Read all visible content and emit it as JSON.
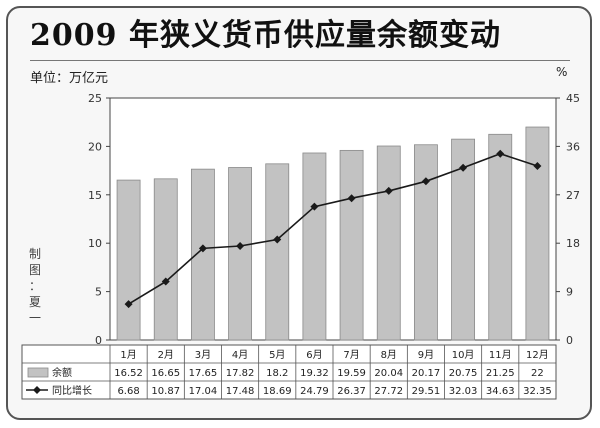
{
  "title": "2009 年狭义货币供应量余额变动",
  "unit_label": "单位：万亿元",
  "right_unit": "%",
  "credit": "制\n图\n：\n夏\n一",
  "chart_data": {
    "type": "bar",
    "title": "2009 年狭义货币供应量余额变动",
    "categories": [
      "1月",
      "2月",
      "3月",
      "4月",
      "5月",
      "6月",
      "7月",
      "8月",
      "9月",
      "10月",
      "11月",
      "12月"
    ],
    "y_left": {
      "range": [
        0,
        25
      ],
      "ticks": [
        "0",
        "5",
        "10",
        "15",
        "20",
        "25"
      ]
    },
    "y_right": {
      "range": [
        0,
        45
      ],
      "ticks": [
        "0",
        "9",
        "18",
        "27",
        "36",
        "45"
      ],
      "unit": "%"
    },
    "grid": false,
    "legend": "table-below",
    "series": [
      {
        "name": "余额",
        "type": "bar",
        "axis": "left",
        "color": "#c2c2c2",
        "values": [
          16.52,
          16.65,
          17.65,
          17.82,
          18.2,
          19.32,
          19.59,
          20.04,
          20.17,
          20.75,
          21.25,
          22
        ],
        "labels": [
          "16.52",
          "16.65",
          "17.65",
          "17.82",
          "18.2",
          "19.32",
          "19.59",
          "20.04",
          "20.17",
          "20.75",
          "21.25",
          "22"
        ]
      },
      {
        "name": "同比增长",
        "type": "line",
        "axis": "right",
        "color": "#1a1a1a",
        "values": [
          6.68,
          10.87,
          17.04,
          17.48,
          18.69,
          24.79,
          26.37,
          27.72,
          29.51,
          32.03,
          34.63,
          32.35
        ],
        "labels": [
          "6.68",
          "10.87",
          "17.04",
          "17.48",
          "18.69",
          "24.79",
          "26.37",
          "27.72",
          "29.51",
          "32.03",
          "34.63",
          "32.35"
        ]
      }
    ]
  }
}
